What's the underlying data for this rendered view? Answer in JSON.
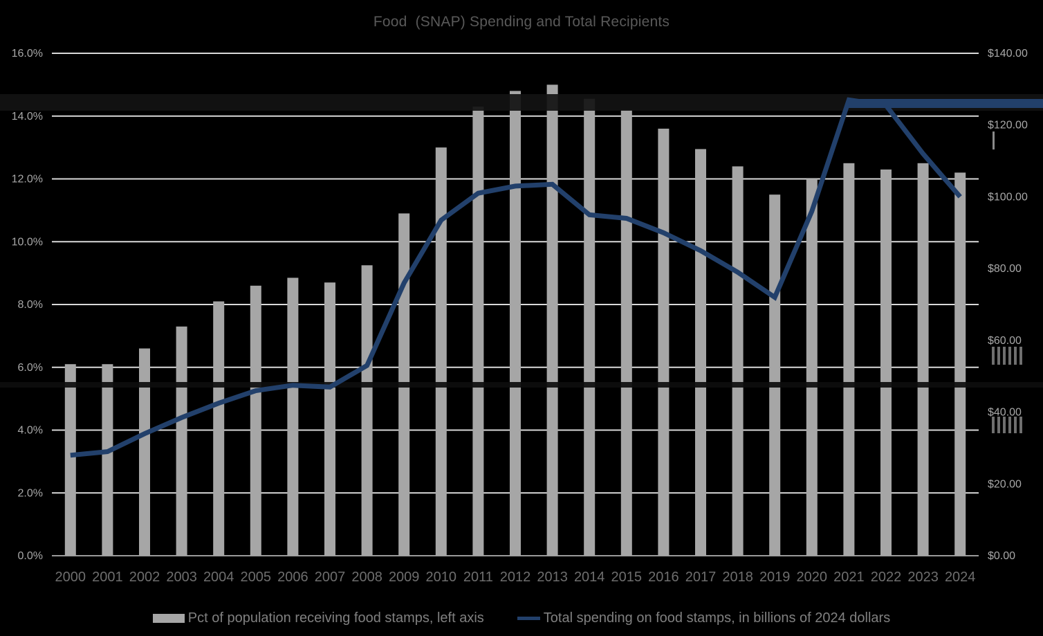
{
  "title": "Food  (SNAP) Spending and Total Recipients",
  "legend": {
    "items": [
      {
        "label": "Pct of population receiving food stamps, left axis",
        "swatch": "gray-bar"
      },
      {
        "label": "Total spending on food stamps, in billions of 2024 dollars",
        "swatch": "navy-line"
      }
    ]
  },
  "chart_data": {
    "type": "bar",
    "subtype": "combo-bar-line-dual-axis",
    "title": "Food  (SNAP) Spending and Total Recipients",
    "years": [
      "2000",
      "2001",
      "2002",
      "2003",
      "2004",
      "2005",
      "2006",
      "2007",
      "2008",
      "2009",
      "2010",
      "2011",
      "2012",
      "2013",
      "2014",
      "2015",
      "2016",
      "2017",
      "2018",
      "2019",
      "2020",
      "2021",
      "2022",
      "2023",
      "2024"
    ],
    "series": [
      {
        "name": "Pct of population receiving food stamps, left axis",
        "type": "bar",
        "axis": "left",
        "unit": "percent of population",
        "values": [
          6.1,
          6.1,
          6.6,
          7.3,
          8.1,
          8.6,
          8.85,
          8.7,
          9.25,
          10.9,
          13.0,
          14.3,
          14.8,
          15.0,
          14.55,
          14.2,
          13.6,
          12.95,
          12.4,
          11.5,
          12.0,
          12.5,
          12.3,
          12.5,
          12.2
        ]
      },
      {
        "name": "Total spending on food stamps, in billions of 2024 dollars",
        "type": "line",
        "axis": "right",
        "unit": "billions of 2024 dollars",
        "values": [
          28,
          29,
          34,
          38.5,
          42.5,
          46,
          47.5,
          47,
          53,
          76,
          93.5,
          101,
          103,
          103.5,
          95,
          94,
          90,
          85,
          79,
          72,
          96,
          127,
          125.5,
          112,
          100
        ]
      }
    ],
    "left_axis": {
      "min": 0,
      "max": 16,
      "step": 2,
      "ticks": [
        "0.0%",
        "2.0%",
        "4.0%",
        "6.0%",
        "8.0%",
        "10.0%",
        "12.0%",
        "14.0%",
        "16.0%"
      ]
    },
    "right_axis": {
      "min": 0,
      "max": 140,
      "step": 20,
      "ticks": [
        "$0.00",
        "$20.00",
        "$40.00",
        "$60.00",
        "$80.00",
        "$100.00",
        "$120.00",
        "$140.00"
      ]
    },
    "grid": "horizontal-on",
    "legend_position": "bottom",
    "colors": {
      "background": "#000000",
      "bar": "#a6a6a6",
      "line": "#22406b",
      "gridline": "#d9d9d9",
      "baseline": "#9a9a9a",
      "title": "#595959",
      "axis_label": "#a8a8a8",
      "year_label": "#6e6e6e",
      "legend_label": "#808080"
    }
  }
}
